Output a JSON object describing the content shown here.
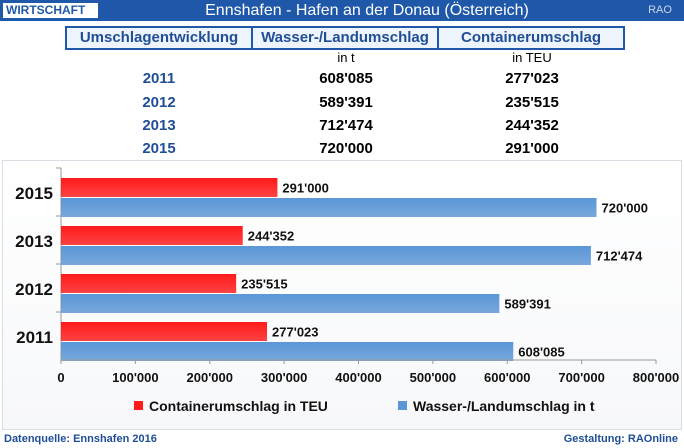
{
  "header": {
    "category": "WIRTSCHAFT",
    "title": "Ennshafen - Hafen an der Donau (Österreich)",
    "brand": "RAO"
  },
  "table": {
    "headers": [
      "Umschlagentwicklung",
      "Wasser-/Landumschlag",
      "Containerumschlag"
    ],
    "units": [
      "",
      "in t",
      "in TEU"
    ],
    "rows": [
      {
        "year": "2011",
        "wasser": "608'085",
        "container": "277'023"
      },
      {
        "year": "2012",
        "wasser": "589'391",
        "container": "235'515"
      },
      {
        "year": "2013",
        "wasser": "712'474",
        "container": "244'352"
      },
      {
        "year": "2015",
        "wasser": "720'000",
        "container": "291'000"
      }
    ]
  },
  "chart_data": {
    "type": "bar",
    "orientation": "horizontal",
    "categories": [
      "2015",
      "2013",
      "2012",
      "2011"
    ],
    "series": [
      {
        "name": "Containerumschlag in TEU",
        "color": "#ff1a1a",
        "values": [
          291000,
          244352,
          235515,
          277023
        ]
      },
      {
        "name": "Wasser-/Landumschlag in t",
        "color": "#5b96d6",
        "values": [
          720000,
          712474,
          589391,
          608085
        ]
      }
    ],
    "xlim": [
      0,
      800000
    ],
    "xticks": [
      0,
      100000,
      200000,
      300000,
      400000,
      500000,
      600000,
      700000,
      800000
    ],
    "xtick_labels": [
      "0",
      "100'000",
      "200'000",
      "300'000",
      "400'000",
      "500'000",
      "600'000",
      "700'000",
      "800'000"
    ],
    "value_labels": [
      [
        "291'000",
        "244'352",
        "235'515",
        "277'023"
      ],
      [
        "720'000",
        "712'474",
        "589'391",
        "608'085"
      ]
    ],
    "legend_position": "bottom",
    "grid": false
  },
  "footer": {
    "source": "Datenquelle: Ennshafen 2016",
    "credit": "Gestaltung: RAOnline"
  }
}
